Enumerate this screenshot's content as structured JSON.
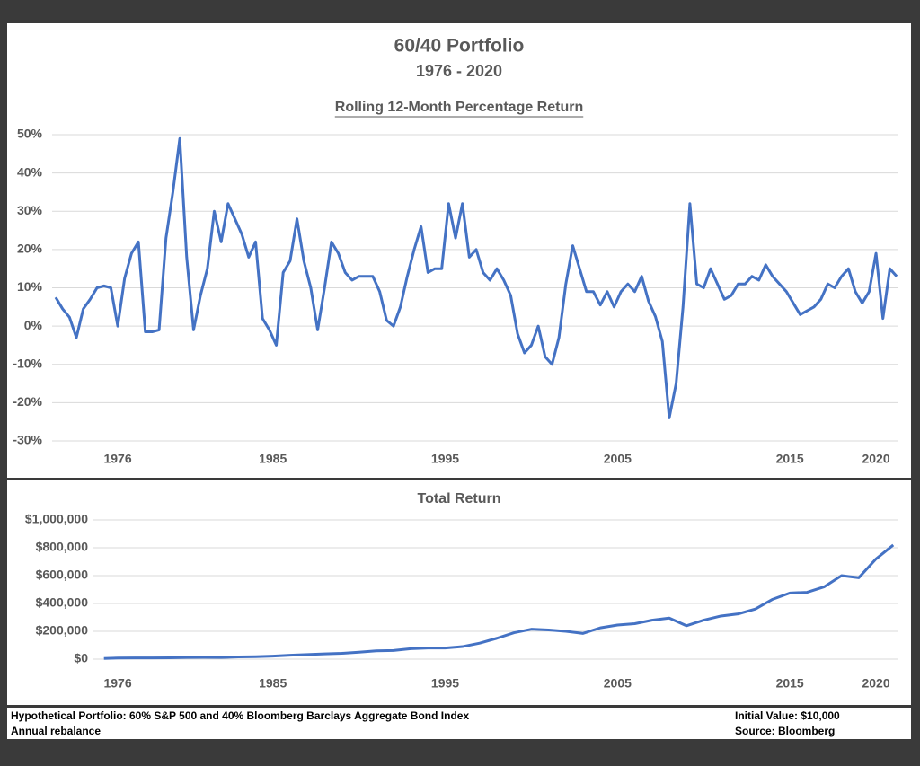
{
  "title": "60/40 Portfolio",
  "subtitle": "1976 - 2020",
  "chart_data": [
    {
      "type": "line",
      "title": "Rolling 12-Month Percentage Return",
      "color": "#4472c4",
      "grid": true,
      "xlim": [
        1972.4,
        2021.3
      ],
      "xticks": [
        1976,
        1985,
        1995,
        2005,
        2015,
        2020
      ],
      "ylim": [
        -30,
        50
      ],
      "yticks": [
        {
          "value": -30,
          "label": "-30%"
        },
        {
          "value": -20,
          "label": "-20%"
        },
        {
          "value": -10,
          "label": "-10%"
        },
        {
          "value": 0,
          "label": "0%"
        },
        {
          "value": 10,
          "label": "10%"
        },
        {
          "value": 20,
          "label": "20%"
        },
        {
          "value": 30,
          "label": "30%"
        },
        {
          "value": 40,
          "label": "40%"
        },
        {
          "value": 50,
          "label": "50%"
        }
      ],
      "x": [
        1972.4,
        1972.8,
        1973.2,
        1973.6,
        1974,
        1974.4,
        1974.8,
        1975.2,
        1975.6,
        1976,
        1976.4,
        1976.8,
        1977.2,
        1977.6,
        1978,
        1978.4,
        1978.8,
        1979.2,
        1979.6,
        1980,
        1980.4,
        1980.8,
        1981.2,
        1981.6,
        1982,
        1982.4,
        1982.8,
        1983.2,
        1983.6,
        1984,
        1984.4,
        1984.8,
        1985.2,
        1985.6,
        1986,
        1986.4,
        1986.8,
        1987.2,
        1987.6,
        1988,
        1988.4,
        1988.8,
        1989.2,
        1989.6,
        1990,
        1990.4,
        1990.8,
        1991.2,
        1991.6,
        1992,
        1992.4,
        1992.8,
        1993.2,
        1993.6,
        1994,
        1994.4,
        1994.8,
        1995.2,
        1995.6,
        1996,
        1996.4,
        1996.8,
        1997.2,
        1997.6,
        1998,
        1998.4,
        1998.8,
        1999.2,
        1999.6,
        2000,
        2000.4,
        2000.8,
        2001.2,
        2001.6,
        2002,
        2002.4,
        2002.8,
        2003.2,
        2003.6,
        2004,
        2004.4,
        2004.8,
        2005.2,
        2005.6,
        2006,
        2006.4,
        2006.8,
        2007.2,
        2007.6,
        2008,
        2008.4,
        2008.8,
        2009.2,
        2009.6,
        2010,
        2010.4,
        2010.8,
        2011.2,
        2011.6,
        2012,
        2012.4,
        2012.8,
        2013.2,
        2013.6,
        2014,
        2014.4,
        2014.8,
        2015.2,
        2015.6,
        2016,
        2016.4,
        2016.8,
        2017.2,
        2017.6,
        2018,
        2018.4,
        2018.8,
        2019.2,
        2019.6,
        2020,
        2020.4,
        2020.8,
        2021.2
      ],
      "values": [
        7.5,
        4.5,
        2.3,
        -3,
        4.5,
        7,
        10,
        10.5,
        10,
        0,
        12.5,
        19,
        22,
        -1.5,
        -1.5,
        -1,
        23,
        35,
        49,
        18,
        -1,
        8,
        15,
        30,
        22,
        32,
        28,
        24,
        18,
        22,
        2,
        -1,
        -5,
        14,
        17,
        28,
        17,
        10,
        -1,
        10,
        22,
        19,
        14,
        12,
        13,
        13,
        13,
        9,
        1.5,
        0,
        5,
        13,
        20,
        26,
        14,
        15,
        15,
        32,
        23,
        32,
        18,
        20,
        14,
        12,
        15,
        12,
        8,
        -2,
        -7,
        -5,
        0,
        -8,
        -10,
        -3,
        11,
        21,
        15,
        9,
        9,
        5.5,
        9,
        5,
        9,
        11,
        9,
        13,
        6.5,
        2.5,
        -4,
        -24,
        -15,
        5,
        32,
        11,
        10,
        15,
        11,
        7,
        8,
        11,
        11,
        13,
        12,
        16,
        13,
        11,
        9,
        6,
        3,
        4,
        5,
        7,
        11,
        10,
        13,
        15,
        9,
        6,
        9,
        19,
        2,
        15,
        13
      ]
    },
    {
      "type": "line",
      "title": "Total Return",
      "color": "#4472c4",
      "grid": true,
      "xlim": [
        1972.4,
        2021.3
      ],
      "xticks": [
        1976,
        1985,
        1995,
        2005,
        2015,
        2020
      ],
      "ylim": [
        0,
        1000000
      ],
      "yticks": [
        {
          "value": 0,
          "label": "$0"
        },
        {
          "value": 200000,
          "label": "$200,000"
        },
        {
          "value": 400000,
          "label": "$400,000"
        },
        {
          "value": 600000,
          "label": "$600,000"
        },
        {
          "value": 800000,
          "label": "$800,000"
        },
        {
          "value": 1000000,
          "label": "$1,000,000"
        }
      ],
      "x": [
        1975.2,
        1976,
        1977,
        1978,
        1979,
        1980,
        1981,
        1982,
        1983,
        1984,
        1985,
        1986,
        1987,
        1988,
        1989,
        1990,
        1991,
        1992,
        1993,
        1994,
        1995,
        1996,
        1997,
        1998,
        1999,
        2000,
        2001,
        2002,
        2003,
        2004,
        2005,
        2006,
        2007,
        2008,
        2009,
        2010,
        2011,
        2012,
        2013,
        2014,
        2015,
        2016,
        2017,
        2018,
        2019,
        2020,
        2021
      ],
      "values": [
        5000,
        8000,
        9000,
        9000,
        10000,
        12000,
        13000,
        12000,
        16000,
        18000,
        22000,
        28000,
        33000,
        38000,
        42000,
        50000,
        60000,
        62000,
        75000,
        80000,
        80000,
        90000,
        115000,
        150000,
        190000,
        215000,
        210000,
        200000,
        185000,
        225000,
        245000,
        255000,
        280000,
        295000,
        240000,
        280000,
        310000,
        325000,
        360000,
        430000,
        475000,
        480000,
        520000,
        600000,
        585000,
        720000,
        820000
      ]
    }
  ],
  "footer": {
    "left": [
      "Hypothetical Portfolio: 60% S&P 500 and 40% Bloomberg Barclays Aggregate Bond Index",
      "Annual rebalance"
    ],
    "right": [
      "Initial Value: $10,000",
      "Source: Bloomberg"
    ]
  }
}
